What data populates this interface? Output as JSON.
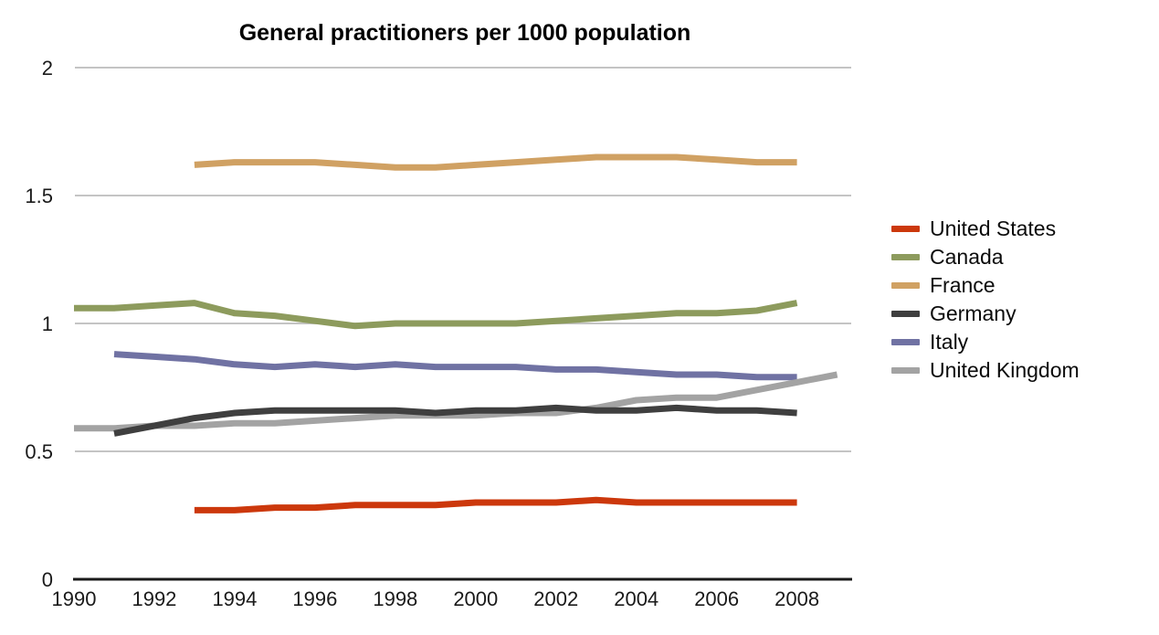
{
  "chart_data": {
    "type": "line",
    "title": "General practitioners per 1000 population",
    "xlabel": "",
    "ylabel": "",
    "xlim": [
      1990,
      2009.35
    ],
    "ylim": [
      0,
      2
    ],
    "xticks": [
      1990,
      1992,
      1994,
      1996,
      1998,
      2000,
      2002,
      2004,
      2006,
      2008
    ],
    "yticks": [
      0,
      0.5,
      1,
      1.5,
      2
    ],
    "ytick_labels": [
      "0",
      "0.5",
      "1",
      "1.5",
      "2"
    ],
    "grid": "horizontal",
    "legend_position": "right",
    "background_color": "#ffffff",
    "gridline_color": "#c4c4c4",
    "axis_line_color": "#1a1a1a",
    "series": [
      {
        "name": "United States",
        "color": "#cc380c",
        "start_year": 1993,
        "values": [
          0.27,
          0.27,
          0.28,
          0.28,
          0.29,
          0.29,
          0.29,
          0.3,
          0.3,
          0.3,
          0.31,
          0.3,
          0.3,
          0.3,
          0.3,
          0.3
        ]
      },
      {
        "name": "Canada",
        "color": "#8d9b5d",
        "start_year": 1990,
        "values": [
          1.06,
          1.06,
          1.07,
          1.08,
          1.04,
          1.03,
          1.01,
          0.99,
          1.0,
          1.0,
          1.0,
          1.0,
          1.01,
          1.02,
          1.03,
          1.04,
          1.04,
          1.05,
          1.08
        ]
      },
      {
        "name": "France",
        "color": "#d0a163",
        "start_year": 1993,
        "values": [
          1.62,
          1.63,
          1.63,
          1.63,
          1.62,
          1.61,
          1.61,
          1.62,
          1.63,
          1.64,
          1.65,
          1.65,
          1.65,
          1.64,
          1.63,
          1.63
        ]
      },
      {
        "name": "Germany",
        "color": "#3f3f3f",
        "start_year": 1991,
        "values": [
          0.57,
          0.6,
          0.63,
          0.65,
          0.66,
          0.66,
          0.66,
          0.66,
          0.65,
          0.66,
          0.66,
          0.67,
          0.66,
          0.66,
          0.67,
          0.66,
          0.66,
          0.65
        ]
      },
      {
        "name": "Italy",
        "color": "#7072a3",
        "start_year": 1991,
        "values": [
          0.88,
          0.87,
          0.86,
          0.84,
          0.83,
          0.84,
          0.83,
          0.84,
          0.83,
          0.83,
          0.83,
          0.82,
          0.82,
          0.81,
          0.8,
          0.8,
          0.79,
          0.79
        ]
      },
      {
        "name": "United Kingdom",
        "color": "#a3a3a3",
        "start_year": 1990,
        "values": [
          0.59,
          0.59,
          0.6,
          0.6,
          0.61,
          0.61,
          0.62,
          0.63,
          0.64,
          0.64,
          0.64,
          0.65,
          0.65,
          0.67,
          0.7,
          0.71,
          0.71,
          0.74,
          0.77,
          0.8
        ]
      }
    ],
    "draw_order": [
      "France",
      "Canada",
      "Italy",
      "United Kingdom",
      "Germany",
      "United States"
    ]
  }
}
